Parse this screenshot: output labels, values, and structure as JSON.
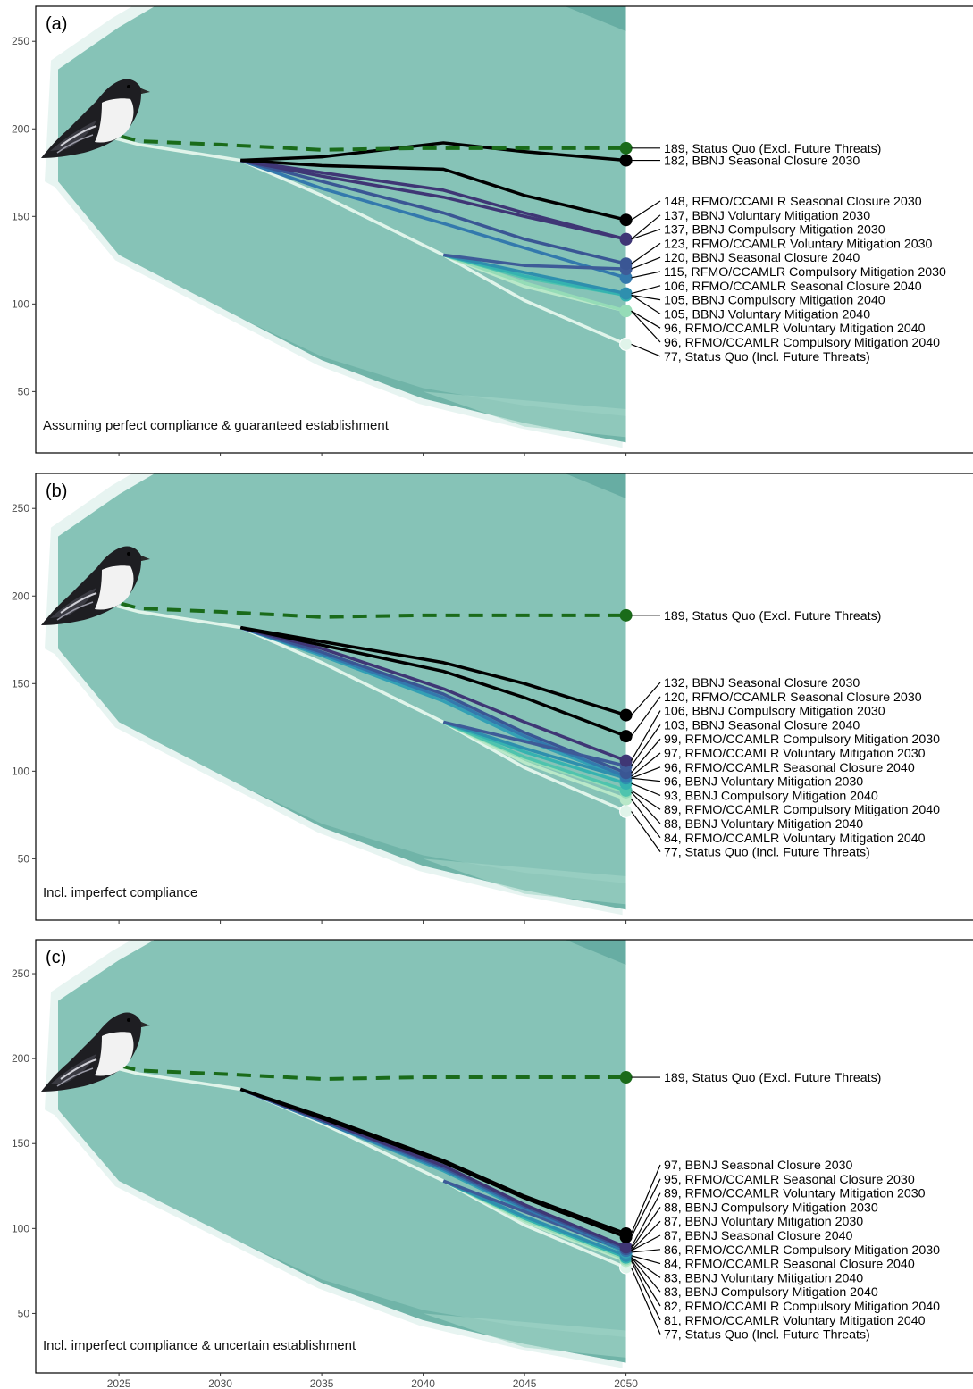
{
  "colors": {
    "band_main": "#86c3b7",
    "band_dark": "#5fa89d",
    "band_light": "#a4d6c8",
    "halo": "#e4f3ef",
    "status_quo_excl": "#1a6b1a",
    "status_quo_incl": "#e0f4ea"
  },
  "bird": {
    "icon": "petrel-bird-icon"
  },
  "chart_data": [
    {
      "panel": "(a)",
      "caption": "Assuming perfect compliance & guaranteed establishment",
      "type": "line",
      "xlim": [
        2022,
        2050
      ],
      "ylim": [
        15,
        270
      ],
      "x_ticks": [
        2025,
        2030,
        2035,
        2040,
        2045,
        2050
      ],
      "y_ticks": [
        50,
        100,
        150,
        200,
        250
      ],
      "band_top": [
        [
          2022,
          234
        ],
        [
          2025,
          258
        ],
        [
          2030,
          292
        ],
        [
          2042,
          330
        ]
      ],
      "band_bottom": [
        [
          2022,
          170
        ],
        [
          2025,
          128
        ],
        [
          2030,
          98
        ],
        [
          2035,
          68
        ],
        [
          2040,
          46
        ],
        [
          2045,
          32
        ],
        [
          2050,
          21
        ]
      ],
      "dark_bottom": [
        [
          2031,
          92
        ],
        [
          2035,
          70
        ],
        [
          2040,
          52
        ],
        [
          2045,
          42
        ],
        [
          2050,
          36
        ]
      ],
      "reference_lines": {
        "status_quo_excl": [
          [
            2024,
            199
          ],
          [
            2026,
            193
          ],
          [
            2030,
            191
          ],
          [
            2035,
            188
          ],
          [
            2040,
            189
          ],
          [
            2050,
            189
          ]
        ],
        "status_quo_incl": [
          [
            2024,
            197
          ],
          [
            2026,
            191
          ],
          [
            2031,
            182
          ],
          [
            2035,
            162
          ],
          [
            2041,
            128
          ],
          [
            2045,
            102
          ],
          [
            2050,
            77
          ]
        ]
      },
      "series": [
        {
          "label": "189, Status Quo (Excl. Future Threats)",
          "end": 189,
          "color": "#1a6b1a",
          "kind": "dash"
        },
        {
          "label": "182, BBNJ Seasonal Closure 2030",
          "end": 182,
          "color": "#000000",
          "start": 2031,
          "mid": [
            [
              2035,
              184
            ],
            [
              2041,
              192
            ],
            [
              2045,
              187
            ]
          ]
        },
        {
          "label": "148, RFMO/CCAMLR Seasonal Closure 2030",
          "end": 148,
          "color": "#000000",
          "start": 2031,
          "mid": [
            [
              2035,
              179
            ],
            [
              2041,
              177
            ],
            [
              2045,
              162
            ]
          ]
        },
        {
          "label": "137, BBNJ Voluntary Mitigation 2030",
          "end": 137,
          "color": "#3f3675",
          "start": 2031,
          "mid": [
            [
              2035,
              175
            ],
            [
              2041,
              165
            ],
            [
              2045,
              152
            ]
          ]
        },
        {
          "label": "137, BBNJ Compulsory Mitigation 2030",
          "end": 137,
          "color": "#3f3675",
          "start": 2031,
          "mid": [
            [
              2035,
              173
            ],
            [
              2041,
              161
            ],
            [
              2045,
              150
            ]
          ]
        },
        {
          "label": "123, RFMO/CCAMLR Voluntary Mitigation 2030",
          "end": 123,
          "color": "#3a5694",
          "start": 2031,
          "mid": [
            [
              2035,
              170
            ],
            [
              2041,
              152
            ],
            [
              2045,
              137
            ]
          ]
        },
        {
          "label": "120, BBNJ Seasonal Closure 2040",
          "end": 120,
          "color": "#3e5b98",
          "start": 2041,
          "mid": [
            [
              2045,
              122
            ]
          ]
        },
        {
          "label": "115, RFMO/CCAMLR Compulsory Mitigation 2030",
          "end": 115,
          "color": "#3379ad",
          "start": 2031,
          "mid": [
            [
              2035,
              166
            ],
            [
              2041,
              146
            ],
            [
              2045,
              132
            ]
          ]
        },
        {
          "label": "106, RFMO/CCAMLR Seasonal Closure 2040",
          "end": 106,
          "color": "#2e8fae",
          "start": 2041,
          "mid": [
            [
              2045,
              118
            ]
          ]
        },
        {
          "label": "105, BBNJ Compulsory Mitigation 2040",
          "end": 105,
          "color": "#35b3b0",
          "start": 2041,
          "mid": [
            [
              2045,
              116
            ]
          ]
        },
        {
          "label": "105, BBNJ Voluntary Mitigation 2040",
          "end": 105,
          "color": "#4fc4ae",
          "start": 2041,
          "mid": [
            [
              2045,
              115
            ]
          ]
        },
        {
          "label": "96, RFMO/CCAMLR Voluntary Mitigation 2040",
          "end": 96,
          "color": "#95dcb7",
          "start": 2041,
          "mid": [
            [
              2045,
              112
            ]
          ]
        },
        {
          "label": "96, RFMO/CCAMLR Compulsory Mitigation 2040",
          "end": 96,
          "color": "#b9e8c9",
          "start": 2041,
          "mid": [
            [
              2045,
              110
            ]
          ]
        },
        {
          "label": "77, Status Quo (Incl. Future Threats)",
          "end": 77,
          "color": "#e0f4ea",
          "kind": "sq"
        }
      ]
    },
    {
      "panel": "(b)",
      "caption": "Incl. imperfect compliance",
      "type": "line",
      "xlim": [
        2022,
        2050
      ],
      "ylim": [
        15,
        270
      ],
      "x_ticks": [
        2025,
        2030,
        2035,
        2040,
        2045,
        2050
      ],
      "y_ticks": [
        50,
        100,
        150,
        200,
        250
      ],
      "band_top": [
        [
          2022,
          234
        ],
        [
          2025,
          258
        ],
        [
          2030,
          292
        ],
        [
          2042,
          330
        ]
      ],
      "band_bottom": [
        [
          2022,
          170
        ],
        [
          2025,
          128
        ],
        [
          2030,
          98
        ],
        [
          2035,
          68
        ],
        [
          2040,
          46
        ],
        [
          2045,
          32
        ],
        [
          2050,
          21
        ]
      ],
      "dark_bottom": [
        [
          2031,
          92
        ],
        [
          2035,
          70
        ],
        [
          2040,
          52
        ],
        [
          2045,
          42
        ],
        [
          2050,
          36
        ]
      ],
      "reference_lines": {
        "status_quo_excl": [
          [
            2024,
            199
          ],
          [
            2026,
            193
          ],
          [
            2030,
            191
          ],
          [
            2035,
            188
          ],
          [
            2040,
            189
          ],
          [
            2050,
            189
          ]
        ],
        "status_quo_incl": [
          [
            2024,
            197
          ],
          [
            2026,
            191
          ],
          [
            2031,
            182
          ],
          [
            2035,
            162
          ],
          [
            2041,
            128
          ],
          [
            2045,
            102
          ],
          [
            2050,
            77
          ]
        ]
      },
      "series": [
        {
          "label": "189, Status Quo (Excl. Future Threats)",
          "end": 189,
          "color": "#1a6b1a",
          "kind": "dash"
        },
        {
          "label": "132, BBNJ Seasonal Closure 2030",
          "end": 132,
          "color": "#000000",
          "start": 2031,
          "mid": [
            [
              2035,
              174
            ],
            [
              2041,
              162
            ],
            [
              2045,
              150
            ]
          ]
        },
        {
          "label": "120, RFMO/CCAMLR Seasonal Closure 2030",
          "end": 120,
          "color": "#000000",
          "start": 2031,
          "mid": [
            [
              2035,
              172
            ],
            [
              2041,
              157
            ],
            [
              2045,
              142
            ]
          ]
        },
        {
          "label": "106, BBNJ Compulsory Mitigation 2030",
          "end": 106,
          "color": "#3f3675",
          "start": 2031,
          "mid": [
            [
              2035,
              170
            ],
            [
              2041,
              147
            ],
            [
              2045,
              128
            ]
          ]
        },
        {
          "label": "103, BBNJ Seasonal Closure 2040",
          "end": 103,
          "color": "#3e5b98",
          "start": 2041,
          "mid": [
            [
              2045,
              117
            ]
          ]
        },
        {
          "label": "99, RFMO/CCAMLR Compulsory Mitigation 2030",
          "end": 99,
          "color": "#3a5694",
          "start": 2031,
          "mid": [
            [
              2035,
              168
            ],
            [
              2041,
              144
            ],
            [
              2045,
              122
            ]
          ]
        },
        {
          "label": "97, RFMO/CCAMLR Voluntary Mitigation 2030",
          "end": 97,
          "color": "#3379ad",
          "start": 2031,
          "mid": [
            [
              2035,
              167
            ],
            [
              2041,
              142
            ],
            [
              2045,
              120
            ]
          ]
        },
        {
          "label": "96, RFMO/CCAMLR Seasonal Closure 2040",
          "end": 96,
          "color": "#2e8fae",
          "start": 2041,
          "mid": [
            [
              2045,
              113
            ]
          ]
        },
        {
          "label": "96, BBNJ Voluntary Mitigation 2030",
          "end": 96,
          "color": "#33a0b5",
          "start": 2031,
          "mid": [
            [
              2035,
              166
            ],
            [
              2041,
              140
            ],
            [
              2045,
              118
            ]
          ]
        },
        {
          "label": "93, BBNJ Compulsory Mitigation 2040",
          "end": 93,
          "color": "#35b3b0",
          "start": 2041,
          "mid": [
            [
              2045,
              111
            ]
          ]
        },
        {
          "label": "89, RFMO/CCAMLR Compulsory Mitigation 2040",
          "end": 89,
          "color": "#4fc4ae",
          "start": 2041,
          "mid": [
            [
              2045,
              108
            ]
          ]
        },
        {
          "label": "88, BBNJ Voluntary Mitigation 2040",
          "end": 88,
          "color": "#95dcb7",
          "start": 2041,
          "mid": [
            [
              2045,
              107
            ]
          ]
        },
        {
          "label": "84, RFMO/CCAMLR Voluntary Mitigation 2040",
          "end": 84,
          "color": "#b9e8c9",
          "start": 2041,
          "mid": [
            [
              2045,
              105
            ]
          ]
        },
        {
          "label": "77, Status Quo (Incl. Future Threats)",
          "end": 77,
          "color": "#e0f4ea",
          "kind": "sq"
        }
      ]
    },
    {
      "panel": "(c)",
      "caption": "Incl. imperfect compliance & uncertain establishment",
      "type": "line",
      "xlim": [
        2022,
        2050
      ],
      "ylim": [
        15,
        270
      ],
      "x_ticks": [
        2025,
        2030,
        2035,
        2040,
        2045,
        2050
      ],
      "y_ticks": [
        50,
        100,
        150,
        200,
        250
      ],
      "band_top": [
        [
          2022,
          234
        ],
        [
          2025,
          258
        ],
        [
          2030,
          292
        ],
        [
          2042,
          330
        ]
      ],
      "band_bottom": [
        [
          2022,
          170
        ],
        [
          2025,
          128
        ],
        [
          2030,
          98
        ],
        [
          2035,
          68
        ],
        [
          2040,
          46
        ],
        [
          2045,
          32
        ],
        [
          2050,
          21
        ]
      ],
      "dark_bottom": [
        [
          2031,
          92
        ],
        [
          2035,
          70
        ],
        [
          2040,
          52
        ],
        [
          2045,
          42
        ],
        [
          2050,
          36
        ]
      ],
      "reference_lines": {
        "status_quo_excl": [
          [
            2024,
            199
          ],
          [
            2026,
            193
          ],
          [
            2030,
            191
          ],
          [
            2035,
            188
          ],
          [
            2040,
            189
          ],
          [
            2050,
            189
          ]
        ],
        "status_quo_incl": [
          [
            2024,
            197
          ],
          [
            2026,
            191
          ],
          [
            2031,
            182
          ],
          [
            2035,
            162
          ],
          [
            2041,
            128
          ],
          [
            2045,
            102
          ],
          [
            2050,
            77
          ]
        ]
      },
      "series": [
        {
          "label": "189, Status Quo (Excl. Future Threats)",
          "end": 189,
          "color": "#1a6b1a",
          "kind": "dash"
        },
        {
          "label": "97, BBNJ Seasonal Closure 2030",
          "end": 97,
          "color": "#000000",
          "start": 2031,
          "mid": [
            [
              2035,
              166
            ],
            [
              2041,
              140
            ],
            [
              2045,
              119
            ]
          ]
        },
        {
          "label": "95, RFMO/CCAMLR Seasonal Closure 2030",
          "end": 95,
          "color": "#000000",
          "start": 2031,
          "mid": [
            [
              2035,
              165
            ],
            [
              2041,
              139
            ],
            [
              2045,
              118
            ]
          ]
        },
        {
          "label": "89, RFMO/CCAMLR Voluntary Mitigation 2030",
          "end": 89,
          "color": "#3f3675",
          "start": 2031,
          "mid": [
            [
              2035,
              164
            ],
            [
              2041,
              137
            ],
            [
              2045,
              114
            ]
          ]
        },
        {
          "label": "88, BBNJ Compulsory Mitigation 2030",
          "end": 88,
          "color": "#3a5694",
          "start": 2031,
          "mid": [
            [
              2035,
              164
            ],
            [
              2041,
              136
            ],
            [
              2045,
              113
            ]
          ]
        },
        {
          "label": "87, BBNJ Voluntary Mitigation 2030",
          "end": 87,
          "color": "#3379ad",
          "start": 2031,
          "mid": [
            [
              2035,
              163
            ],
            [
              2041,
              135
            ],
            [
              2045,
              112
            ]
          ]
        },
        {
          "label": "87, BBNJ Seasonal Closure 2040",
          "end": 87,
          "color": "#3e5b98",
          "start": 2041,
          "mid": [
            [
              2045,
              110
            ]
          ]
        },
        {
          "label": "86, RFMO/CCAMLR Compulsory Mitigation 2030",
          "end": 86,
          "color": "#33a0b5",
          "start": 2031,
          "mid": [
            [
              2035,
              163
            ],
            [
              2041,
              134
            ],
            [
              2045,
              111
            ]
          ]
        },
        {
          "label": "84, RFMO/CCAMLR Seasonal Closure 2040",
          "end": 84,
          "color": "#2e8fae",
          "start": 2041,
          "mid": [
            [
              2045,
              107
            ]
          ]
        },
        {
          "label": "83, BBNJ Voluntary Mitigation 2040",
          "end": 83,
          "color": "#35b3b0",
          "start": 2041,
          "mid": [
            [
              2045,
              106
            ]
          ]
        },
        {
          "label": "83, BBNJ Compulsory Mitigation 2040",
          "end": 83,
          "color": "#4fc4ae",
          "start": 2041,
          "mid": [
            [
              2045,
              106
            ]
          ]
        },
        {
          "label": "82, RFMO/CCAMLR Compulsory Mitigation 2040",
          "end": 82,
          "color": "#95dcb7",
          "start": 2041,
          "mid": [
            [
              2045,
              105
            ]
          ]
        },
        {
          "label": "81, RFMO/CCAMLR Voluntary Mitigation 2040",
          "end": 81,
          "color": "#b9e8c9",
          "start": 2041,
          "mid": [
            [
              2045,
              104
            ]
          ]
        },
        {
          "label": "77, Status Quo (Incl. Future Threats)",
          "end": 77,
          "color": "#e0f4ea",
          "kind": "sq"
        }
      ]
    }
  ]
}
